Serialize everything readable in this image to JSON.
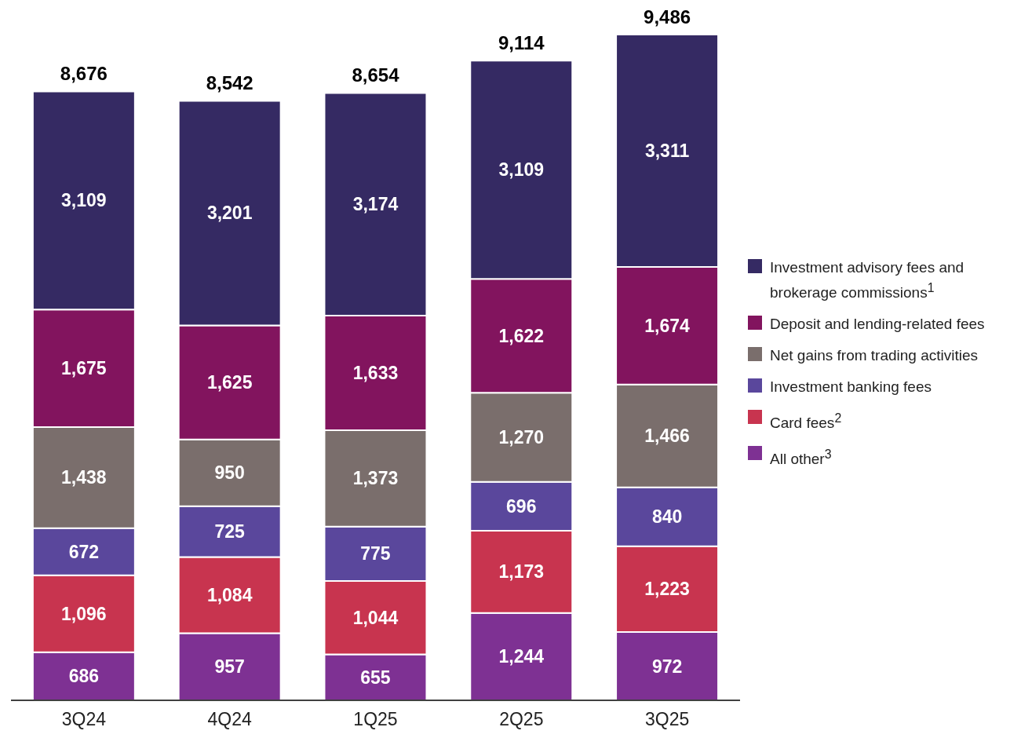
{
  "chart_data": {
    "type": "bar",
    "stacked": true,
    "categories": [
      "3Q24",
      "4Q24",
      "1Q25",
      "2Q25",
      "3Q25"
    ],
    "series": [
      {
        "name": "All other$^{3}$",
        "color": "#7e3193",
        "values": [
          686,
          957,
          655,
          1244,
          972
        ],
        "value_labels": [
          "686",
          "957",
          "655",
          "1,244",
          "972"
        ]
      },
      {
        "name": "Card fees$^{2}$",
        "color": "#c8344f",
        "values": [
          1096,
          1084,
          1044,
          1173,
          1223
        ],
        "value_labels": [
          "1,096",
          "1,084",
          "1,044",
          "1,173",
          "1,223"
        ]
      },
      {
        "name": "Investment banking fees",
        "color": "#5a479c",
        "values": [
          672,
          725,
          775,
          696,
          840
        ],
        "value_labels": [
          "672",
          "725",
          "775",
          "696",
          "840"
        ]
      },
      {
        "name": "Net gains from trading activities",
        "color": "#7a6e6c",
        "values": [
          1438,
          950,
          1373,
          1270,
          1466
        ],
        "value_labels": [
          "1,438",
          "950",
          "1,373",
          "1,270",
          "1,466"
        ]
      },
      {
        "name": "Deposit and lending-related fees",
        "color": "#82145e",
        "values": [
          1675,
          1625,
          1633,
          1622,
          1674
        ],
        "value_labels": [
          "1,675",
          "1,625",
          "1,633",
          "1,622",
          "1,674"
        ]
      },
      {
        "name": "Investment advisory fees and brokerage commissions$^{1}$",
        "color": "#352a63",
        "values": [
          3109,
          3201,
          3174,
          3109,
          3311
        ],
        "value_labels": [
          "3,109",
          "3,201",
          "3,174",
          "3,109",
          "3,311"
        ]
      }
    ],
    "totals": [
      "8,676",
      "8,542",
      "8,654",
      "9,114",
      "9,486"
    ],
    "legend": "right"
  }
}
